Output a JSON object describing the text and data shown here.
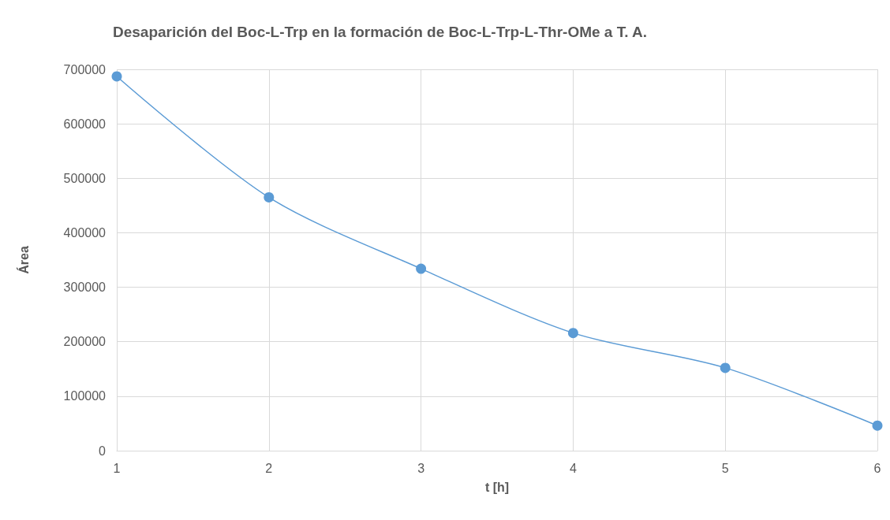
{
  "chart_data": {
    "type": "line",
    "title": "Desaparición del Boc-L-Trp en la formación de Boc-L-Trp-L-Thr-OMe a T. A.",
    "xlabel": "t [h]",
    "ylabel": "Área",
    "x": [
      1,
      2,
      3,
      4,
      5,
      6
    ],
    "series": [
      {
        "color": "#5b9bd5",
        "values": [
          687000,
          465000,
          334000,
          216000,
          152000,
          46000
        ]
      }
    ],
    "xlim": [
      1,
      6
    ],
    "xticks": [
      1,
      2,
      3,
      4,
      5,
      6
    ],
    "ylim": [
      0,
      700000
    ],
    "yticks": [
      0,
      100000,
      200000,
      300000,
      400000,
      500000,
      600000,
      700000
    ],
    "grid": true,
    "marker": "circle",
    "line_style": "solid"
  }
}
